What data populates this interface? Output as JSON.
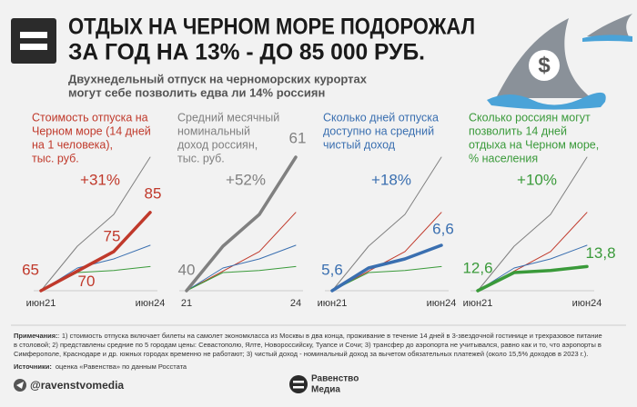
{
  "header": {
    "title": [
      "ОТДЫХ НА ЧЕРНОМ МОРЕ ПОДОРОЖАЛ",
      "ЗА ГОД НА 13% - ДО 85 000 РУБ."
    ],
    "subtitle": [
      "Двухнедельный отпуск на черноморских курортах",
      "могут себе позволить едва ли 14% россиян"
    ]
  },
  "chart_data": [
    {
      "type": "line",
      "title": [
        "Стоимость отпуска на",
        "Черном море (14 дней",
        "на 1 человека),",
        "тыс. руб."
      ],
      "annotation": "+31%",
      "categories": [
        "июн21",
        null,
        null,
        "июн24"
      ],
      "series": [
        {
          "color": "#c0392b",
          "values": [
            65,
            70,
            75,
            85
          ]
        }
      ]
    },
    {
      "type": "line",
      "title": [
        "Средний месячный",
        "номинальный",
        "доход россиян,",
        "тыс. руб."
      ],
      "annotation": "+52%",
      "categories": [
        "21",
        null,
        null,
        "24"
      ],
      "series": [
        {
          "color": "#808080",
          "values": [
            40,
            47,
            52,
            61
          ]
        }
      ]
    },
    {
      "type": "line",
      "title": [
        "Сколько дней отпуска",
        "доступно на средний",
        "чистый доход"
      ],
      "annotation": "+18%",
      "categories": [
        "июн21",
        null,
        null,
        "июн24"
      ],
      "series": [
        {
          "color": "#3a6fb0",
          "values": [
            5.6,
            6.1,
            6.3,
            6.6
          ],
          "value_labels": [
            "5,6",
            null,
            null,
            "6,6"
          ]
        }
      ]
    },
    {
      "type": "line",
      "title": [
        "Сколько россиян могут",
        "позволить 14 дней",
        "отдыха на Черном море,",
        "% населения"
      ],
      "annotation": "+10%",
      "categories": [
        "июн21",
        null,
        null,
        "июн24"
      ],
      "series": [
        {
          "color": "#3a9a3a",
          "values": [
            12.6,
            13.5,
            13.6,
            13.8
          ],
          "value_labels": [
            "12,6",
            null,
            null,
            "13,8"
          ]
        }
      ]
    }
  ],
  "footer": {
    "notes_label": "Примечания:",
    "notes": [
      ": 1) стоимость отпуска включает билеты на самолет экономкласса из Москвы в два конца, проживание в течение 14 дней в 3-звездочной гостинице и трехразовое питание",
      "в столовой; 2) представлены средние по 5 городам цены: Севастополю, Ялте, Новороссийску, Туапсе и Сочи; 3) трансфер до аэропорта не учитывался, равно как и то, что аэропорты в",
      "Симферополе, Краснодаре и др. южных городах временно не работают; 3) чистый доход - номинальный доход за вычетом обязательных платежей (около 15,5% доходов в 2023 г.)."
    ],
    "sources_label": "Источники:",
    "sources": "оценка «Равенства» по данным Росстата",
    "handle": "@ravenstvomedia",
    "brand": [
      "Равенство",
      "Медиа"
    ]
  }
}
